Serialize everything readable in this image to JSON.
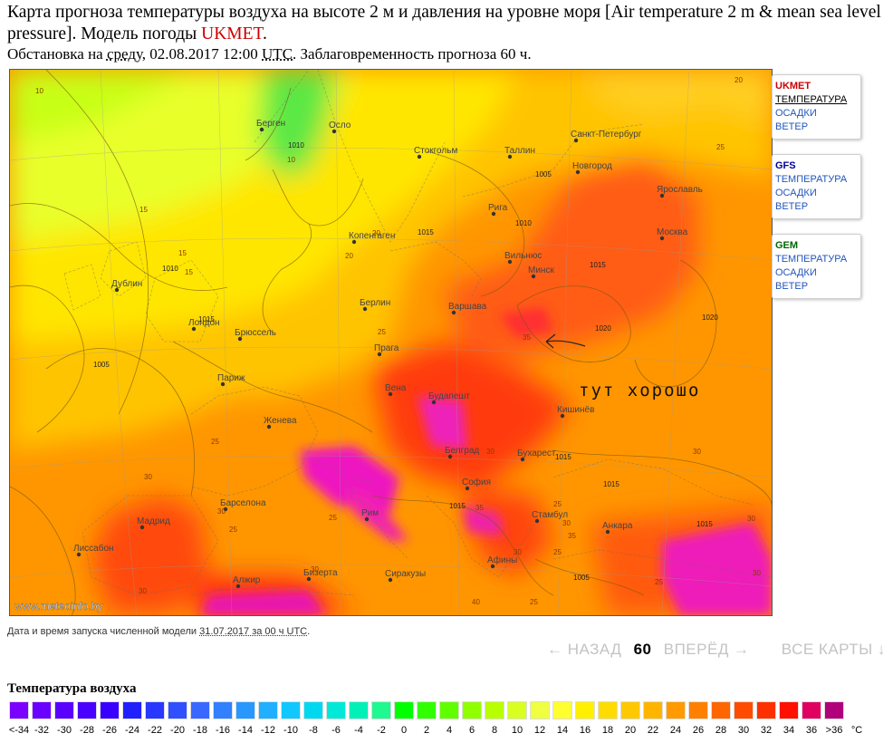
{
  "header": {
    "title_main": "Карта прогноза температуры воздуха на высоте 2 м и давления на уровне моря [Air temperature 2 m & mean sea level pressure]. Модель погоды ",
    "title_model": "UKMET",
    "title_end": ".",
    "sub_prefix": "Обстановка на ",
    "sub_day": "среду",
    "sub_date": ", 02.08.2017 12:00 ",
    "sub_utc": "UTC",
    "sub_lead": ". Заблаговременность прогноза 60 ч."
  },
  "map": {
    "watermark": "www.meteoinfo.by",
    "annotation": "тут хорошо",
    "cities": [
      {
        "name": "Берген"
      },
      {
        "name": "Осло"
      },
      {
        "name": "Стокгольм"
      },
      {
        "name": "Таллин"
      },
      {
        "name": "Санкт-Петербург"
      },
      {
        "name": "Новгород"
      },
      {
        "name": "Ярославль"
      },
      {
        "name": "Рига"
      },
      {
        "name": "Москва"
      },
      {
        "name": "Копенгаген"
      },
      {
        "name": "Вильнюс"
      },
      {
        "name": "Минск"
      },
      {
        "name": "Дублин"
      },
      {
        "name": "Лондон"
      },
      {
        "name": "Берлин"
      },
      {
        "name": "Варшава"
      },
      {
        "name": "Брюссель"
      },
      {
        "name": "Прага"
      },
      {
        "name": "Париж"
      },
      {
        "name": "Вена"
      },
      {
        "name": "Будапешт"
      },
      {
        "name": "Женева"
      },
      {
        "name": "Кишинёв"
      },
      {
        "name": "Белград"
      },
      {
        "name": "Бухарест"
      },
      {
        "name": "Барселона"
      },
      {
        "name": "Рим"
      },
      {
        "name": "София"
      },
      {
        "name": "Мадрид"
      },
      {
        "name": "Стамбул"
      },
      {
        "name": "Анкара"
      },
      {
        "name": "Лиссабон"
      },
      {
        "name": "Афины"
      },
      {
        "name": "Алжир"
      },
      {
        "name": "Бизерта"
      },
      {
        "name": "Сиракузы"
      }
    ],
    "isobars": [
      "1010",
      "1005",
      "1015",
      "1010",
      "1015",
      "1010",
      "1015",
      "1020",
      "1020",
      "1005",
      "1015",
      "1015",
      "1015",
      "1005",
      "1015"
    ],
    "temps": [
      "10",
      "10",
      "15",
      "15",
      "15",
      "20",
      "20",
      "25",
      "25",
      "25",
      "30",
      "30",
      "30",
      "25",
      "30",
      "35",
      "35",
      "30",
      "30",
      "25",
      "30",
      "25",
      "25",
      "35",
      "30",
      "30",
      "25",
      "40",
      "30",
      "25",
      "20"
    ]
  },
  "models": [
    {
      "name": "UKMET",
      "color": "#cc0000",
      "links": [
        "ТЕМПЕРАТУРА",
        "ОСАДКИ",
        "ВЕТЕР"
      ],
      "current": 0
    },
    {
      "name": "GFS",
      "color": "#000099",
      "links": [
        "ТЕМПЕРАТУРА",
        "ОСАДКИ",
        "ВЕТЕР"
      ],
      "current": -1
    },
    {
      "name": "GEM",
      "color": "#006600",
      "links": [
        "ТЕМПЕРАТУРА",
        "ОСАДКИ",
        "ВЕТЕР"
      ],
      "current": -1
    }
  ],
  "run_info": {
    "prefix": "Дата и время запуска численной модели ",
    "date": "31.07.2017 за 00 ч UTC",
    "suffix": "."
  },
  "nav": {
    "back": "← НАЗАД",
    "hour": "60",
    "forward": "ВПЕРЁД →",
    "all": "ВСЕ КАРТЫ ↓"
  },
  "legend": {
    "title": "Температура воздуха",
    "labels": [
      "<-34",
      "-32",
      "-30",
      "-28",
      "-26",
      "-24",
      "-22",
      "-20",
      "-18",
      "-16",
      "-14",
      "-12",
      "-10",
      "-8",
      "-6",
      "-4",
      "-2",
      "0",
      "2",
      "4",
      "6",
      "8",
      "10",
      "12",
      "14",
      "16",
      "18",
      "20",
      "22",
      "24",
      "26",
      "28",
      "30",
      "32",
      "34",
      "36",
      ">36"
    ],
    "unit": "°C",
    "colors": [
      "#7a00ff",
      "#6a00ff",
      "#5a00ff",
      "#4a00ff",
      "#3a00ff",
      "#2020ff",
      "#2838ff",
      "#3050ff",
      "#3868ff",
      "#3080ff",
      "#2898ff",
      "#20b0ff",
      "#10c8ff",
      "#00d8f0",
      "#00e8d8",
      "#00f0b8",
      "#20f890",
      "#00ff00",
      "#30ff00",
      "#60ff00",
      "#90ff00",
      "#b8ff00",
      "#d8ff20",
      "#f0ff40",
      "#ffff30",
      "#fff000",
      "#ffdc00",
      "#ffc800",
      "#ffb400",
      "#ff9a00",
      "#ff8000",
      "#ff6600",
      "#ff4c00",
      "#ff3000",
      "#ff1000",
      "#e00060",
      "#b0007a"
    ]
  }
}
